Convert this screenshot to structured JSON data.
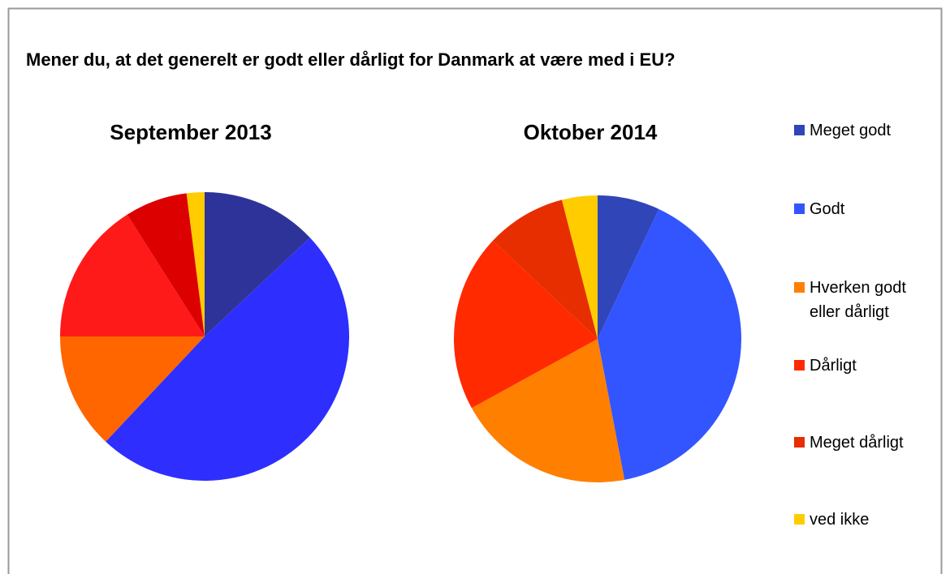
{
  "title": "Mener du, at det generelt er godt eller dårligt for Danmark at være med i EU?",
  "chart_data": [
    {
      "type": "pie",
      "title": "September 2013",
      "categories": [
        "Meget godt",
        "Godt",
        "Hverken godt eller dårligt",
        "Dårligt",
        "Meget dårligt",
        "ved ikke"
      ],
      "values": [
        13,
        49,
        13,
        16,
        7,
        2
      ],
      "colors": [
        "#2e3399",
        "#2e2eff",
        "#ff6600",
        "#ff1a1a",
        "#dd0000",
        "#ffcc00"
      ]
    },
    {
      "type": "pie",
      "title": "Oktober 2014",
      "categories": [
        "Meget godt",
        "Godt",
        "Hverken godt eller dårligt",
        "Dårligt",
        "Meget dårligt",
        "ved ikke"
      ],
      "values": [
        7,
        40,
        20,
        20,
        9,
        4
      ],
      "colors": [
        "#2f45b8",
        "#3355ff",
        "#ff7f00",
        "#ff2a00",
        "#e62e00",
        "#ffcc00"
      ]
    }
  ]
}
